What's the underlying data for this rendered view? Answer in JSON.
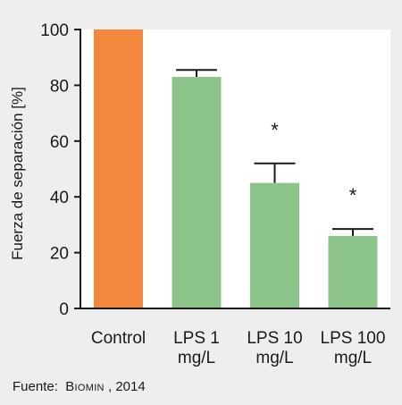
{
  "chart_data": {
    "type": "bar",
    "ylabel": "Fuerza de separación [%]",
    "ylim": [
      0,
      100
    ],
    "yticks": [
      0,
      20,
      40,
      60,
      80,
      100
    ],
    "grid": false,
    "categories": [
      {
        "lines": [
          "Control"
        ]
      },
      {
        "lines": [
          "LPS 1",
          "mg/L"
        ]
      },
      {
        "lines": [
          "LPS 10",
          "mg/L"
        ]
      },
      {
        "lines": [
          "LPS 100",
          "mg/L"
        ]
      }
    ],
    "values": [
      100,
      83,
      45,
      26
    ],
    "error_upper": [
      0,
      2.5,
      7,
      2.5
    ],
    "significance": [
      "",
      "",
      "*",
      "*"
    ],
    "colors": [
      "#f4873e",
      "#8cc48a",
      "#8cc48a",
      "#8cc48a"
    ],
    "plot_background": "#ffffff",
    "page_background": "#eeeeef"
  },
  "source": {
    "label": "Fuente:",
    "name": "Biomin",
    "year": ", 2014"
  }
}
